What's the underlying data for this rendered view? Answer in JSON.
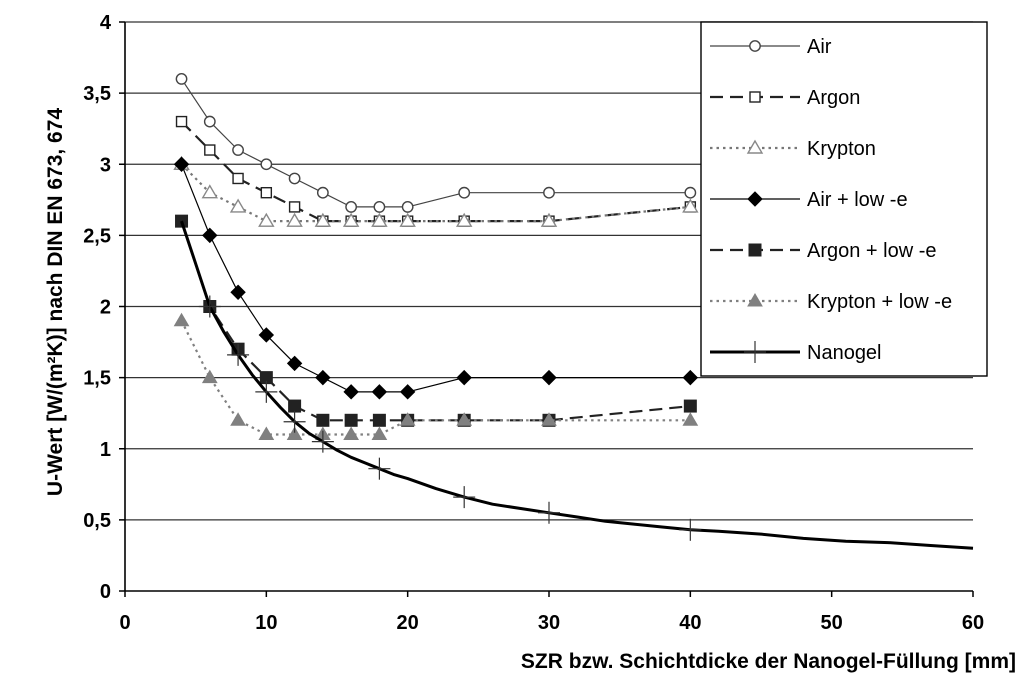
{
  "chart_data": {
    "type": "line",
    "title": "",
    "xlabel": "SZR bzw. Schichtdicke der Nanogel-Füllung [mm]",
    "ylabel": "U-Wert [W/(m²K)]  nach DIN EN 673,  674",
    "xlim": [
      0,
      60
    ],
    "ylim": [
      0,
      4
    ],
    "xticks": [
      0,
      10,
      20,
      30,
      40,
      50,
      60
    ],
    "xtick_labels": [
      "0",
      "10",
      "20",
      "30",
      "40",
      "50",
      "60"
    ],
    "yticks": [
      0,
      0.5,
      1,
      1.5,
      2,
      2.5,
      3,
      3.5,
      4
    ],
    "ytick_labels": [
      "0",
      "0,5",
      "1",
      "1,5",
      "2",
      "2,5",
      "3",
      "3,5",
      "4"
    ],
    "grid": "horizontal",
    "legend_position": "top-right",
    "series": [
      {
        "name": "Air",
        "marker": "circle-open",
        "line": "solid-thin",
        "color": "#444444",
        "x": [
          4,
          6,
          8,
          10,
          12,
          14,
          16,
          18,
          20,
          24,
          30,
          40
        ],
        "y": [
          3.6,
          3.3,
          3.1,
          3.0,
          2.9,
          2.8,
          2.7,
          2.7,
          2.7,
          2.8,
          2.8,
          2.8
        ]
      },
      {
        "name": "Argon",
        "marker": "square-open",
        "line": "long-dash",
        "color": "#222222",
        "x": [
          4,
          6,
          8,
          10,
          12,
          14,
          16,
          18,
          20,
          24,
          30,
          40
        ],
        "y": [
          3.3,
          3.1,
          2.9,
          2.8,
          2.7,
          2.6,
          2.6,
          2.6,
          2.6,
          2.6,
          2.6,
          2.7
        ]
      },
      {
        "name": "Krypton",
        "marker": "triangle-open",
        "line": "dotted",
        "color": "#777777",
        "x": [
          4,
          6,
          8,
          10,
          12,
          14,
          16,
          18,
          20,
          24,
          30,
          40
        ],
        "y": [
          3.0,
          2.8,
          2.7,
          2.6,
          2.6,
          2.6,
          2.6,
          2.6,
          2.6,
          2.6,
          2.6,
          2.7
        ]
      },
      {
        "name": "Air + low -e",
        "marker": "diamond-filled",
        "line": "solid-thin",
        "color": "#000000",
        "x": [
          4,
          6,
          8,
          10,
          12,
          14,
          16,
          18,
          20,
          24,
          30,
          40
        ],
        "y": [
          3.0,
          2.5,
          2.1,
          1.8,
          1.6,
          1.5,
          1.4,
          1.4,
          1.4,
          1.5,
          1.5,
          1.5
        ]
      },
      {
        "name": "Argon + low -e",
        "marker": "square-filled",
        "line": "long-dash",
        "color": "#222222",
        "x": [
          4,
          6,
          8,
          10,
          12,
          14,
          16,
          18,
          20,
          24,
          30,
          40
        ],
        "y": [
          2.6,
          2.0,
          1.7,
          1.5,
          1.3,
          1.2,
          1.2,
          1.2,
          1.2,
          1.2,
          1.2,
          1.3
        ]
      },
      {
        "name": "Krypton + low -e",
        "marker": "triangle-filled",
        "line": "dotted",
        "color": "#808080",
        "x": [
          4,
          6,
          8,
          10,
          12,
          14,
          16,
          18,
          20,
          24,
          30,
          40
        ],
        "y": [
          1.9,
          1.5,
          1.2,
          1.1,
          1.1,
          1.1,
          1.1,
          1.1,
          1.2,
          1.2,
          1.2,
          1.2
        ]
      },
      {
        "name": "Nanogel",
        "marker": "plus",
        "line": "solid-thick",
        "color": "#000000",
        "x": [
          4,
          5,
          6,
          7,
          8,
          9,
          10,
          11,
          12,
          13,
          14,
          15,
          16,
          17,
          18,
          19,
          20,
          22,
          24,
          26,
          28,
          30,
          32,
          34,
          36,
          38,
          40,
          42,
          45,
          48,
          51,
          54,
          57,
          60
        ],
        "y": [
          2.6,
          2.3,
          2.0,
          1.82,
          1.66,
          1.52,
          1.4,
          1.29,
          1.19,
          1.11,
          1.05,
          0.99,
          0.94,
          0.9,
          0.86,
          0.82,
          0.79,
          0.72,
          0.66,
          0.61,
          0.58,
          0.55,
          0.52,
          0.49,
          0.47,
          0.45,
          0.43,
          0.42,
          0.4,
          0.37,
          0.35,
          0.34,
          0.32,
          0.3
        ],
        "marker_x": [
          6,
          8,
          10,
          12,
          14,
          18,
          24,
          30,
          40
        ],
        "marker_y": [
          2.0,
          1.66,
          1.4,
          1.19,
          1.05,
          0.86,
          0.66,
          0.55,
          0.43
        ]
      }
    ]
  }
}
